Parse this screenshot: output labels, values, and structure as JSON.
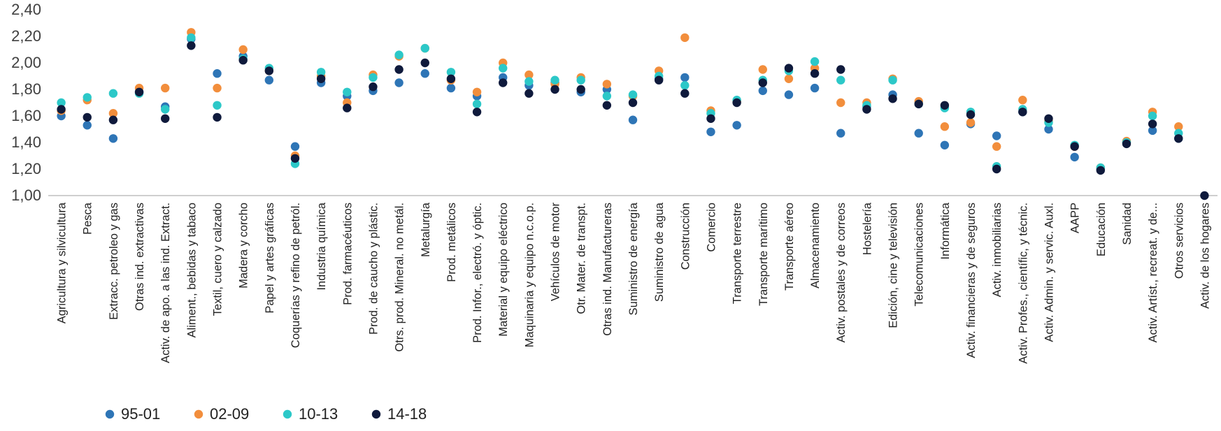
{
  "chart_data": {
    "type": "scatter",
    "categories": [
      "Agricultura y silvicultura",
      "Pesca",
      "Extracc. petroleo y gas",
      "Otras ind. extractivas",
      "Activ. de apo. a las ind. Extract.",
      "Aliment., bebidas y tabaco",
      "Textil, cuero y calzado",
      "Madera y corcho",
      "Papel y artes gráficas",
      "Coquerías y refino de petról.",
      "Industria química",
      "Prod. farmacéuticos",
      "Prod. de caucho y plástic.",
      "Otrs. prod. Mineral. no metál.",
      "Metalurgía",
      "Prod. metálicos",
      "Prod. Infor., electró. y óptic.",
      "Material y equipo eléctrico",
      "Maquinaria y equipo n.c.o.p.",
      "Vehículos de motor",
      "Otr. Mater. de transpt.",
      "Otras ind. Manufactureras",
      "Suministro de energía",
      "Suministro de agua",
      "Construcción",
      "Comercio",
      "Transporte terrestre",
      "Transporte marítimo",
      "Transporte aéreo",
      "Almacenamiento",
      "Activ. postales y de correos",
      "Hostelería",
      "Edición, cine y televisión",
      "Telecomunicaciones",
      "Informática",
      "Activ. financieras y de seguros",
      "Activ. inmobiliarias",
      "Activ. Profes., científic, y técnic.",
      "Activ. Admin. y servic. Auxl.",
      "AAPP",
      "Educación",
      "Sanidad",
      "Activ. Artíst., recreat. y de...",
      "Otros servicios",
      "Activ. de los hogares"
    ],
    "series": [
      {
        "name": "95-01",
        "color": "#2E75B6",
        "values": [
          1.6,
          1.53,
          1.43,
          1.78,
          1.67,
          2.18,
          1.92,
          2.05,
          1.87,
          1.37,
          1.85,
          1.75,
          1.79,
          1.85,
          1.92,
          1.81,
          1.75,
          1.89,
          1.83,
          1.85,
          1.78,
          1.8,
          1.57,
          1.88,
          1.89,
          1.48,
          1.53,
          1.79,
          1.76,
          1.81,
          1.47,
          1.67,
          1.76,
          1.47,
          1.38,
          1.54,
          1.45,
          1.63,
          1.5,
          1.29,
          1.2,
          1.4,
          1.49,
          1.43,
          null
        ]
      },
      {
        "name": "02-09",
        "color": "#F28E3C",
        "values": [
          1.64,
          1.72,
          1.62,
          1.81,
          1.81,
          2.23,
          1.81,
          2.1,
          1.94,
          1.3,
          1.9,
          1.7,
          1.91,
          2.05,
          2.11,
          1.87,
          1.78,
          2.0,
          1.91,
          1.84,
          1.89,
          1.84,
          1.75,
          1.94,
          2.19,
          1.64,
          1.71,
          1.95,
          1.88,
          1.96,
          1.7,
          1.7,
          1.88,
          1.71,
          1.52,
          1.55,
          1.37,
          1.72,
          1.56,
          1.37,
          1.21,
          1.41,
          1.63,
          1.52,
          null
        ]
      },
      {
        "name": "10-13",
        "color": "#2CC8C8",
        "values": [
          1.7,
          1.74,
          1.77,
          1.77,
          1.65,
          2.19,
          1.68,
          2.03,
          1.96,
          1.24,
          1.93,
          1.78,
          1.89,
          2.06,
          2.11,
          1.93,
          1.69,
          1.96,
          1.86,
          1.87,
          1.87,
          1.75,
          1.76,
          1.9,
          1.83,
          1.62,
          1.72,
          1.87,
          1.94,
          2.01,
          1.87,
          1.68,
          1.87,
          1.69,
          1.66,
          1.63,
          1.22,
          1.65,
          1.55,
          1.38,
          1.21,
          1.4,
          1.6,
          1.47,
          null
        ]
      },
      {
        "name": "14-18",
        "color": "#0F1A3C",
        "values": [
          1.65,
          1.59,
          1.57,
          1.78,
          1.58,
          2.13,
          1.59,
          2.02,
          1.94,
          1.28,
          1.88,
          1.66,
          1.82,
          1.95,
          2.0,
          1.88,
          1.63,
          1.85,
          1.77,
          1.8,
          1.8,
          1.68,
          1.7,
          1.87,
          1.77,
          1.58,
          1.7,
          1.85,
          1.96,
          1.92,
          1.95,
          1.65,
          1.73,
          1.69,
          1.68,
          1.61,
          1.2,
          1.63,
          1.58,
          1.37,
          1.19,
          1.39,
          1.54,
          1.43,
          1.0
        ]
      }
    ],
    "ylim": [
      1.0,
      2.4
    ],
    "yticks": [
      "1,00",
      "1,20",
      "1,40",
      "1,60",
      "1,80",
      "2,00",
      "2,20",
      "2,40"
    ],
    "grid": false,
    "legend_position": "bottom-left"
  }
}
